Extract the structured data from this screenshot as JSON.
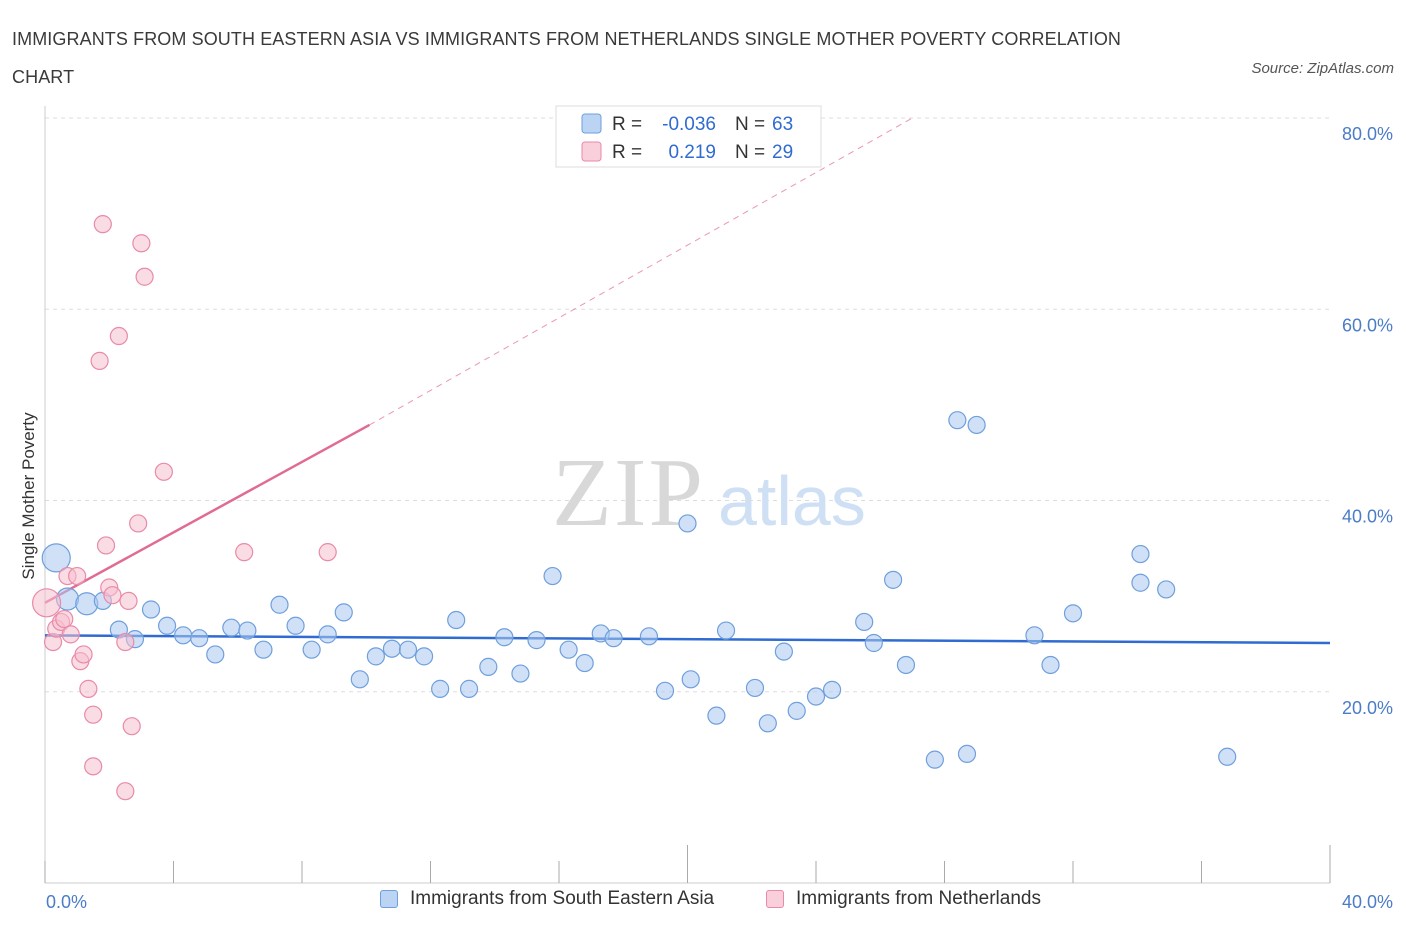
{
  "title": "IMMIGRANTS FROM SOUTH EASTERN ASIA VS IMMIGRANTS FROM NETHERLANDS SINGLE MOTHER POVERTY CORRELATION CHART",
  "source": "Source: ZipAtlas.com",
  "watermark": {
    "zip": "ZIP",
    "atlas": "atlas"
  },
  "colors": {
    "blue_fill": "#a9c8f0",
    "blue_stroke": "#6f9fdc",
    "blue_line": "#2f6bd1",
    "pink_fill": "#f6bfd0",
    "pink_stroke": "#e98aa8",
    "pink_line": "#e06b93",
    "grid": "#dddddd",
    "tick_text": "#4a7cc7"
  },
  "legend": {
    "rows": [
      {
        "r_label": "R =",
        "r_value": "-0.036",
        "n_label": "N =",
        "n_value": "63",
        "series": "blue"
      },
      {
        "r_label": "R =",
        "r_value": "0.219",
        "n_label": "N =",
        "n_value": "29",
        "series": "pink"
      }
    ]
  },
  "chart_data": {
    "type": "scatter",
    "title": "IMMIGRANTS FROM SOUTH EASTERN ASIA VS IMMIGRANTS FROM NETHERLANDS SINGLE MOTHER POVERTY CORRELATION CHART",
    "xlabel": "",
    "ylabel": "Single Mother Poverty",
    "xlim": [
      0,
      40
    ],
    "ylim": [
      0,
      80
    ],
    "x_tick_labels": [
      "0.0%",
      "40.0%"
    ],
    "y_ticks": [
      20,
      40,
      60,
      80
    ],
    "y_tick_labels": [
      "20.0%",
      "40.0%",
      "60.0%",
      "80.0%"
    ],
    "grid": true,
    "legend_position": "top-center",
    "series": [
      {
        "name": "Immigrants from South Eastern Asia",
        "color": "blue",
        "trend": {
          "x": [
            0,
            40
          ],
          "y": [
            25.9,
            25.1
          ],
          "style": "solid"
        },
        "points": [
          {
            "x": 0.35,
            "y": 34.0,
            "s": 3
          },
          {
            "x": 0.7,
            "y": 29.7,
            "s": 2
          },
          {
            "x": 1.3,
            "y": 29.2,
            "s": 2
          },
          {
            "x": 1.8,
            "y": 29.5,
            "s": 1
          },
          {
            "x": 2.3,
            "y": 26.5,
            "s": 1
          },
          {
            "x": 2.8,
            "y": 25.5,
            "s": 1
          },
          {
            "x": 3.3,
            "y": 28.6,
            "s": 1
          },
          {
            "x": 3.8,
            "y": 26.9,
            "s": 1
          },
          {
            "x": 4.3,
            "y": 25.9,
            "s": 1
          },
          {
            "x": 4.8,
            "y": 25.6,
            "s": 1
          },
          {
            "x": 5.3,
            "y": 23.9,
            "s": 1
          },
          {
            "x": 5.8,
            "y": 26.7,
            "s": 1
          },
          {
            "x": 6.3,
            "y": 26.4,
            "s": 1
          },
          {
            "x": 6.8,
            "y": 24.4,
            "s": 1
          },
          {
            "x": 7.3,
            "y": 29.1,
            "s": 1
          },
          {
            "x": 7.8,
            "y": 26.9,
            "s": 1
          },
          {
            "x": 8.3,
            "y": 24.4,
            "s": 1
          },
          {
            "x": 8.8,
            "y": 26.0,
            "s": 1
          },
          {
            "x": 9.3,
            "y": 28.3,
            "s": 1
          },
          {
            "x": 9.8,
            "y": 21.3,
            "s": 1
          },
          {
            "x": 10.3,
            "y": 23.7,
            "s": 1
          },
          {
            "x": 10.8,
            "y": 24.5,
            "s": 1
          },
          {
            "x": 11.3,
            "y": 24.4,
            "s": 1
          },
          {
            "x": 11.8,
            "y": 23.7,
            "s": 1
          },
          {
            "x": 12.3,
            "y": 20.3,
            "s": 1
          },
          {
            "x": 12.8,
            "y": 27.5,
            "s": 1
          },
          {
            "x": 13.2,
            "y": 20.3,
            "s": 1
          },
          {
            "x": 13.8,
            "y": 22.6,
            "s": 1
          },
          {
            "x": 14.3,
            "y": 25.7,
            "s": 1
          },
          {
            "x": 14.8,
            "y": 21.9,
            "s": 1
          },
          {
            "x": 15.3,
            "y": 25.4,
            "s": 1
          },
          {
            "x": 15.8,
            "y": 32.1,
            "s": 1
          },
          {
            "x": 16.3,
            "y": 24.4,
            "s": 1
          },
          {
            "x": 16.8,
            "y": 23.0,
            "s": 1
          },
          {
            "x": 17.3,
            "y": 26.1,
            "s": 1
          },
          {
            "x": 17.7,
            "y": 25.6,
            "s": 1
          },
          {
            "x": 18.8,
            "y": 25.8,
            "s": 1
          },
          {
            "x": 19.3,
            "y": 20.1,
            "s": 1
          },
          {
            "x": 20.0,
            "y": 37.6,
            "s": 1
          },
          {
            "x": 20.1,
            "y": 21.3,
            "s": 1
          },
          {
            "x": 20.9,
            "y": 17.5,
            "s": 1
          },
          {
            "x": 21.2,
            "y": 26.4,
            "s": 1
          },
          {
            "x": 22.1,
            "y": 20.4,
            "s": 1
          },
          {
            "x": 22.5,
            "y": 16.7,
            "s": 1
          },
          {
            "x": 23.0,
            "y": 24.2,
            "s": 1
          },
          {
            "x": 23.4,
            "y": 18.0,
            "s": 1
          },
          {
            "x": 24.0,
            "y": 19.5,
            "s": 1
          },
          {
            "x": 24.5,
            "y": 20.2,
            "s": 1
          },
          {
            "x": 25.5,
            "y": 27.3,
            "s": 1
          },
          {
            "x": 25.8,
            "y": 25.1,
            "s": 1
          },
          {
            "x": 26.4,
            "y": 31.7,
            "s": 1
          },
          {
            "x": 26.8,
            "y": 22.8,
            "s": 1
          },
          {
            "x": 27.7,
            "y": 12.9,
            "s": 1
          },
          {
            "x": 28.4,
            "y": 48.4,
            "s": 1
          },
          {
            "x": 28.7,
            "y": 13.5,
            "s": 1
          },
          {
            "x": 29.0,
            "y": 47.9,
            "s": 1
          },
          {
            "x": 30.8,
            "y": 25.9,
            "s": 1
          },
          {
            "x": 31.3,
            "y": 22.8,
            "s": 1
          },
          {
            "x": 32.0,
            "y": 28.2,
            "s": 1
          },
          {
            "x": 34.1,
            "y": 34.4,
            "s": 1
          },
          {
            "x": 34.1,
            "y": 31.4,
            "s": 1
          },
          {
            "x": 34.9,
            "y": 30.7,
            "s": 1
          },
          {
            "x": 36.8,
            "y": 13.2,
            "s": 1
          }
        ]
      },
      {
        "name": "Immigrants from Netherlands",
        "color": "pink",
        "trend": {
          "x": [
            0,
            10.1
          ],
          "y": [
            29.3,
            47.9
          ],
          "style": "solid",
          "extrapolated_to": {
            "x": 27.0,
            "y": 80.0
          }
        },
        "points": [
          {
            "x": 0.05,
            "y": 29.3,
            "s": 3
          },
          {
            "x": 0.25,
            "y": 25.2,
            "s": 1
          },
          {
            "x": 0.35,
            "y": 26.6,
            "s": 1
          },
          {
            "x": 0.5,
            "y": 27.3,
            "s": 1
          },
          {
            "x": 0.6,
            "y": 27.6,
            "s": 1
          },
          {
            "x": 0.7,
            "y": 32.1,
            "s": 1
          },
          {
            "x": 0.8,
            "y": 26.0,
            "s": 1
          },
          {
            "x": 1.0,
            "y": 32.1,
            "s": 1
          },
          {
            "x": 1.1,
            "y": 23.2,
            "s": 1
          },
          {
            "x": 1.2,
            "y": 23.9,
            "s": 1
          },
          {
            "x": 1.35,
            "y": 20.3,
            "s": 1
          },
          {
            "x": 1.5,
            "y": 17.6,
            "s": 1
          },
          {
            "x": 1.5,
            "y": 12.2,
            "s": 1
          },
          {
            "x": 1.7,
            "y": 54.6,
            "s": 1
          },
          {
            "x": 1.8,
            "y": 68.9,
            "s": 1
          },
          {
            "x": 1.9,
            "y": 35.3,
            "s": 1
          },
          {
            "x": 2.0,
            "y": 30.9,
            "s": 1
          },
          {
            "x": 2.1,
            "y": 30.1,
            "s": 1
          },
          {
            "x": 2.3,
            "y": 57.2,
            "s": 1
          },
          {
            "x": 2.5,
            "y": 25.2,
            "s": 1
          },
          {
            "x": 2.5,
            "y": 9.6,
            "s": 1
          },
          {
            "x": 2.6,
            "y": 29.5,
            "s": 1
          },
          {
            "x": 2.7,
            "y": 16.4,
            "s": 1
          },
          {
            "x": 2.9,
            "y": 37.6,
            "s": 1
          },
          {
            "x": 3.0,
            "y": 66.9,
            "s": 1
          },
          {
            "x": 3.1,
            "y": 63.4,
            "s": 1
          },
          {
            "x": 3.7,
            "y": 43.0,
            "s": 1
          },
          {
            "x": 6.2,
            "y": 34.6,
            "s": 1
          },
          {
            "x": 8.8,
            "y": 34.6,
            "s": 1
          }
        ]
      }
    ]
  }
}
